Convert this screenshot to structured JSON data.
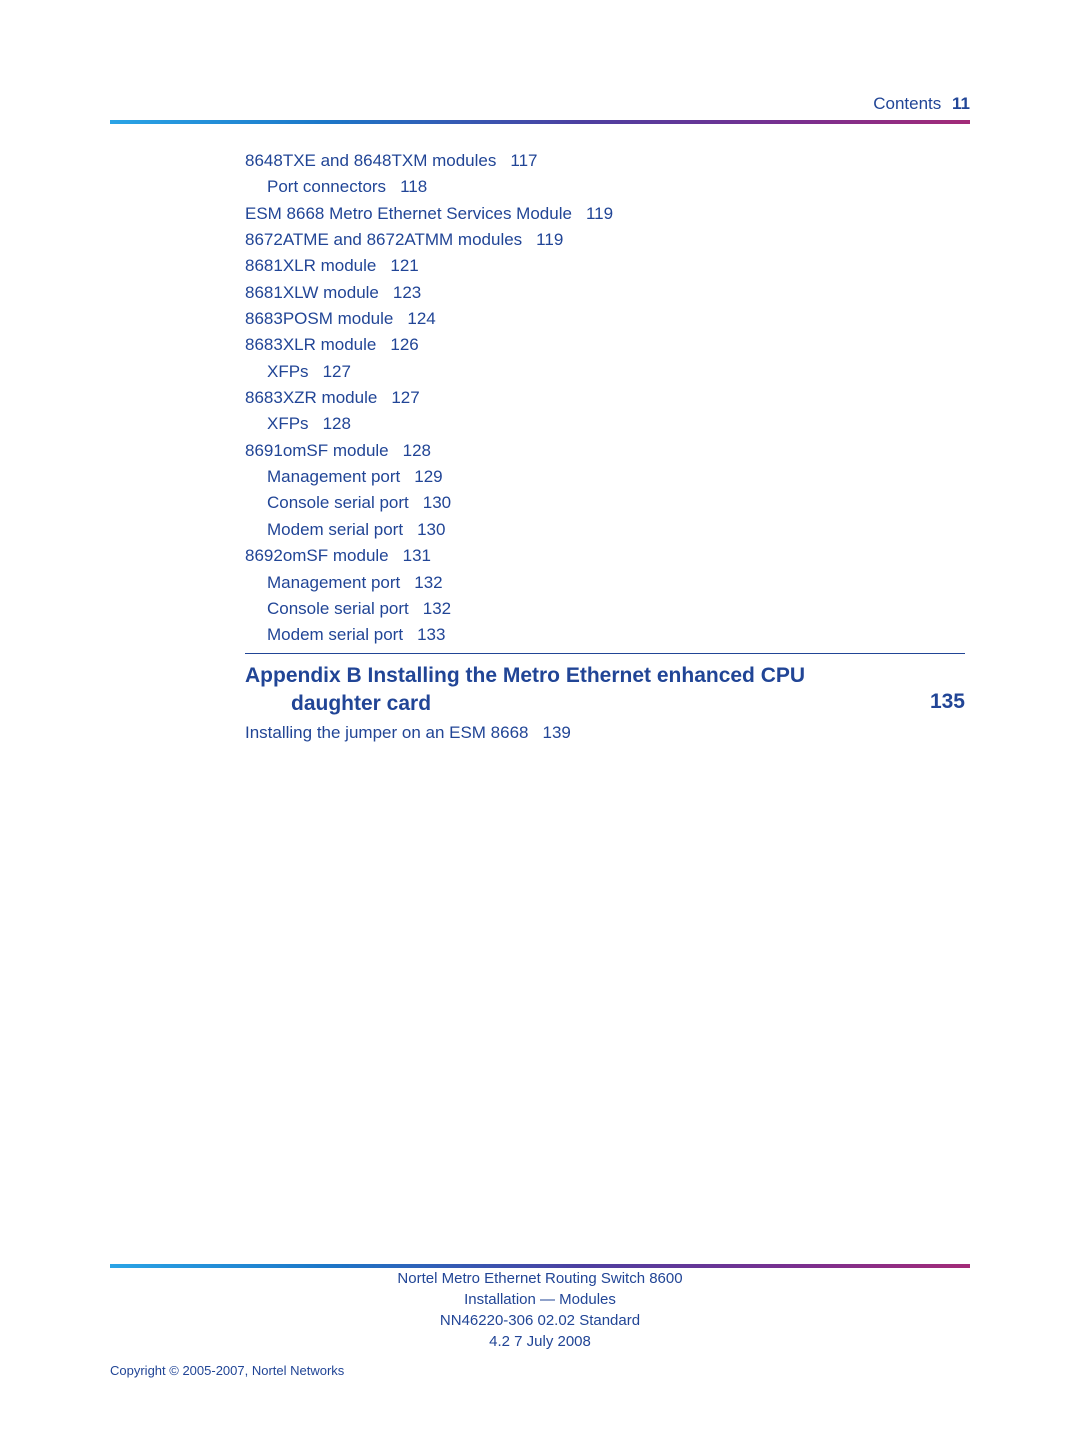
{
  "header": {
    "label": "Contents",
    "page_number": "11"
  },
  "colors": {
    "link": "#214596",
    "rule_gradient_from": "#2aa4e6",
    "rule_gradient_to": "#a32b78",
    "background": "#ffffff"
  },
  "typography": {
    "body_fontsize_pt": 12.5,
    "heading_fontsize_pt": 15.5,
    "footer_fontsize_pt": 11
  },
  "toc_entries": [
    {
      "level": 0,
      "text": "8648TXE and 8648TXM modules",
      "page": "117"
    },
    {
      "level": 1,
      "text": "Port connectors",
      "page": "118"
    },
    {
      "level": 0,
      "text": "ESM 8668 Metro Ethernet Services Module",
      "page": "119"
    },
    {
      "level": 0,
      "text": "8672ATME and 8672ATMM modules",
      "page": "119"
    },
    {
      "level": 0,
      "text": "8681XLR module",
      "page": "121"
    },
    {
      "level": 0,
      "text": "8681XLW module",
      "page": "123"
    },
    {
      "level": 0,
      "text": "8683POSM module",
      "page": "124"
    },
    {
      "level": 0,
      "text": "8683XLR module",
      "page": "126"
    },
    {
      "level": 1,
      "text": "XFPs",
      "page": "127"
    },
    {
      "level": 0,
      "text": "8683XZR module",
      "page": "127"
    },
    {
      "level": 1,
      "text": "XFPs",
      "page": "128"
    },
    {
      "level": 0,
      "text": "8691omSF module",
      "page": "128"
    },
    {
      "level": 1,
      "text": "Management port",
      "page": "129"
    },
    {
      "level": 1,
      "text": "Console serial port",
      "page": "130"
    },
    {
      "level": 1,
      "text": "Modem serial port",
      "page": "130"
    },
    {
      "level": 0,
      "text": "8692omSF module",
      "page": "131"
    },
    {
      "level": 1,
      "text": "Management port",
      "page": "132"
    },
    {
      "level": 1,
      "text": "Console serial port",
      "page": "132"
    },
    {
      "level": 1,
      "text": "Modem serial port",
      "page": "133"
    }
  ],
  "appendix": {
    "title_line1": "Appendix B  Installing the Metro Ethernet enhanced CPU",
    "title_line2": "daughter card",
    "page": "135"
  },
  "post_appendix_entries": [
    {
      "level": 0,
      "text": "Installing the jumper on an ESM 8668",
      "page": "139"
    }
  ],
  "footer": {
    "line1": "Nortel Metro Ethernet Routing Switch 8600",
    "line2": "Installation — Modules",
    "line3": "NN46220-306   02.02   Standard",
    "line4": "4.2   7 July 2008"
  },
  "copyright": "Copyright © 2005-2007, Nortel Networks"
}
